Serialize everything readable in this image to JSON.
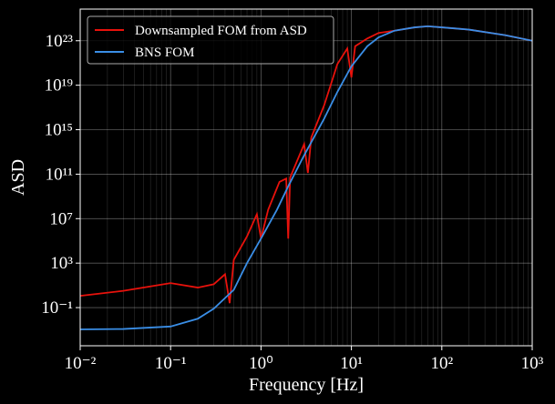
{
  "chart_data": {
    "type": "line",
    "xlabel": "Frequency [Hz]",
    "ylabel": "ASD",
    "xscale": "log",
    "yscale": "log",
    "grid": true,
    "legend": "upper left",
    "xlim": [
      0.01,
      1000
    ],
    "ylim": [
      3.7e-05,
      7e+25
    ],
    "xticks": [
      {
        "value": 0.01,
        "label": "10⁻²"
      },
      {
        "value": 0.1,
        "label": "10⁻¹"
      },
      {
        "value": 1,
        "label": "10⁰"
      },
      {
        "value": 10,
        "label": "10¹"
      },
      {
        "value": 100,
        "label": "10²"
      },
      {
        "value": 1000,
        "label": "10³"
      }
    ],
    "yticks": [
      {
        "value": 0.1,
        "label": "10⁻¹"
      },
      {
        "value": 1000,
        "label": "10³"
      },
      {
        "value": 10000000.0,
        "label": "10⁷"
      },
      {
        "value": 100000000000.0,
        "label": "10¹¹"
      },
      {
        "value": 1000000000000000.0,
        "label": "10¹⁵"
      },
      {
        "value": 1e+19,
        "label": "10¹⁹"
      },
      {
        "value": 1e+23,
        "label": "10²³"
      }
    ],
    "series": [
      {
        "name": "Downsampled FOM from ASD",
        "color": "#e8120c",
        "x": [
          0.01,
          0.03,
          0.1,
          0.2,
          0.3,
          0.4,
          0.45,
          0.5,
          0.7,
          0.9,
          1.0,
          1.2,
          1.6,
          1.9,
          2.0,
          2.1,
          3,
          3.3,
          3.6,
          5,
          7,
          9,
          10,
          11,
          15,
          20,
          30,
          50,
          70,
          100,
          200,
          500,
          1000
        ],
        "values": [
          1.15,
          3.2,
          16,
          6.3,
          12.6,
          100,
          0.25,
          2000,
          250000.0,
          25000000.0,
          160000.0,
          63000000.0,
          20000000000.0,
          40000000000.0,
          160000.0,
          50000000000.0,
          50000000000000.0,
          130000000000.0,
          200000000000000.0,
          1.6e+17,
          8e+20,
          2e+22,
          5e+19,
          3.2e+22,
          1.6e+23,
          5e+23,
          8e+23,
          1.6e+24,
          2e+24,
          1.6e+24,
          1e+24,
          3.2e+23,
          1e+23
        ]
      },
      {
        "name": "BNS FOM",
        "color": "#3a8ee6",
        "x": [
          0.01,
          0.03,
          0.1,
          0.2,
          0.3,
          0.5,
          0.7,
          1,
          1.5,
          2,
          3,
          5,
          7,
          10,
          15,
          20,
          30,
          50,
          70,
          100,
          200,
          500,
          1000
        ],
        "values": [
          0.0011,
          0.0012,
          0.002,
          0.01,
          0.08,
          4,
          1000,
          160000.0,
          63000000.0,
          8000000000.0,
          5000000000000.0,
          1e+16,
          2.5e+18,
          5e+20,
          3.2e+22,
          2e+23,
          8e+23,
          1.6e+24,
          2e+24,
          1.6e+24,
          1e+24,
          3.2e+23,
          1e+23
        ]
      }
    ]
  }
}
